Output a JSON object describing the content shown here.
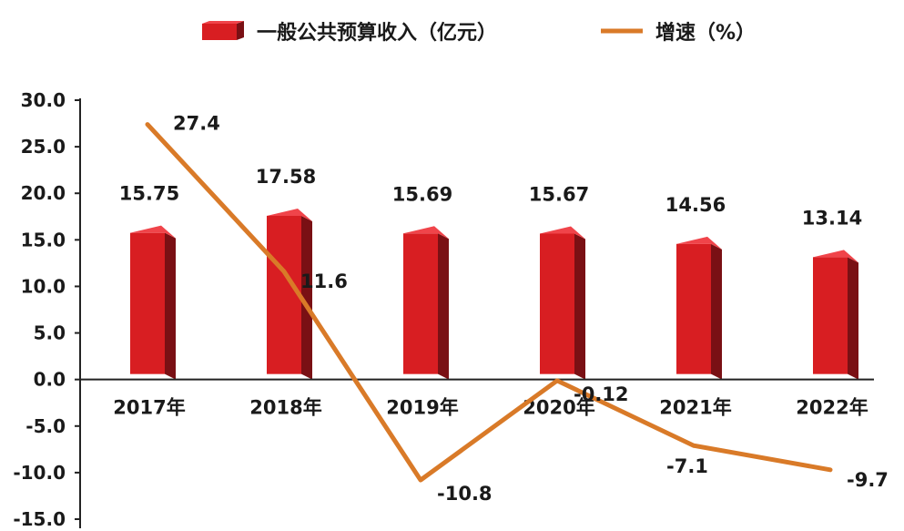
{
  "legend": {
    "bar_label": "一般公共预算收入（亿元）",
    "line_label": "增速（%）"
  },
  "colors": {
    "bar_front": "#d81e22",
    "bar_top": "#f0444a",
    "bar_side": "#7a1014",
    "line": "#d97a28",
    "axis": "#222222",
    "text": "#1a1a1a"
  },
  "chart_data": {
    "type": "bar",
    "categories": [
      "2017年",
      "2018年",
      "2019年",
      "2020年",
      "2021年",
      "2022年"
    ],
    "series": [
      {
        "name": "一般公共预算收入（亿元）",
        "type": "bar",
        "values": [
          15.75,
          17.58,
          15.69,
          15.67,
          14.56,
          13.14
        ]
      },
      {
        "name": "增速（%）",
        "type": "line",
        "values": [
          27.4,
          11.6,
          -10.8,
          -0.12,
          -7.1,
          -9.7
        ]
      }
    ],
    "y_ticks": [
      "30.0",
      "25.0",
      "20.0",
      "15.0",
      "10.0",
      "5.0",
      "0.0",
      "-5.0",
      "-10.0",
      "-15.0"
    ],
    "bar_labels": [
      "15.75",
      "17.58",
      "15.69",
      "15.67",
      "14.56",
      "13.14"
    ],
    "line_labels": [
      "27.4",
      "11.6",
      "-10.8",
      "-0.12",
      "-7.1",
      "-9.7"
    ],
    "ylim": [
      -15,
      30
    ],
    "grid": false,
    "legend_position": "top"
  }
}
